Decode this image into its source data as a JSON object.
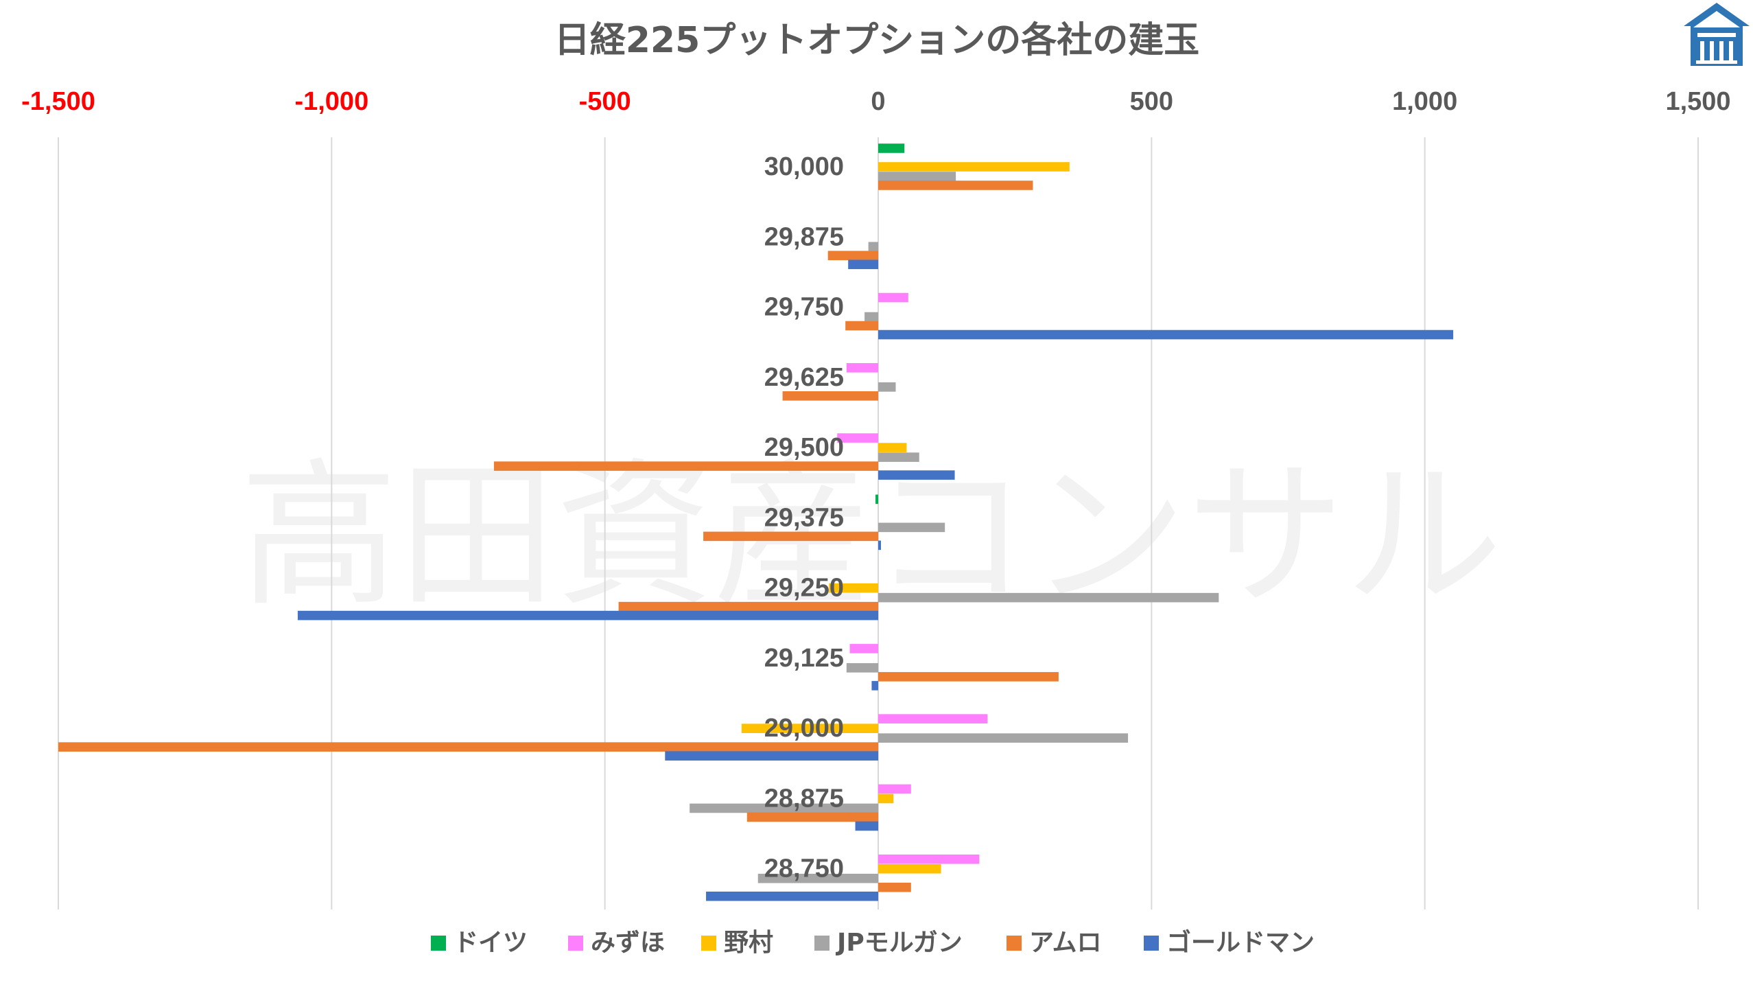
{
  "watermark": "高田資産コンサル",
  "colors": {
    "text": "#595959",
    "negative_tick": "#ff0000",
    "grid": "#d9d9d9",
    "logo": "#2e75b6"
  },
  "chart_data": {
    "type": "bar",
    "orientation": "horizontal",
    "title": "日経225プットオプションの各社の建玉",
    "xlim": [
      -1500,
      1500
    ],
    "x_ticks": [
      -1500,
      -1000,
      -500,
      0,
      500,
      1000,
      1500
    ],
    "x_tick_labels": [
      "-1,500",
      "-1,000",
      "-500",
      "0",
      "500",
      "1,000",
      "1,500"
    ],
    "x_axis_position": "top",
    "negative_tick_color": "#ff0000",
    "grid": true,
    "legend_position": "bottom",
    "categories": [
      "30,000",
      "29,875",
      "29,750",
      "29,625",
      "29,500",
      "29,375",
      "29,250",
      "29,125",
      "29,000",
      "28,875",
      "28,750"
    ],
    "series": [
      {
        "name": "ドイツ",
        "color": "#00b050",
        "values": [
          48,
          0,
          0,
          0,
          0,
          -5,
          0,
          0,
          0,
          0,
          0
        ]
      },
      {
        "name": "みずほ",
        "color": "#ff80ff",
        "values": [
          0,
          0,
          55,
          -58,
          -75,
          0,
          0,
          -52,
          200,
          60,
          185
        ]
      },
      {
        "name": "野村",
        "color": "#ffc000",
        "values": [
          350,
          0,
          0,
          0,
          52,
          0,
          -90,
          0,
          -250,
          28,
          115
        ]
      },
      {
        "name": "JPモルガン",
        "color": "#a5a5a5",
        "values": [
          142,
          -18,
          -25,
          32,
          75,
          122,
          623,
          -58,
          457,
          -345,
          -220
        ]
      },
      {
        "name": "アムロ",
        "color": "#ed7d31",
        "values": [
          283,
          -92,
          -60,
          -175,
          -703,
          -320,
          -475,
          330,
          -1500,
          -240,
          60
        ]
      },
      {
        "name": "ゴールドマン",
        "color": "#4472c4",
        "values": [
          0,
          -55,
          1052,
          0,
          140,
          5,
          -1062,
          -12,
          -390,
          -42,
          -315
        ]
      }
    ]
  }
}
